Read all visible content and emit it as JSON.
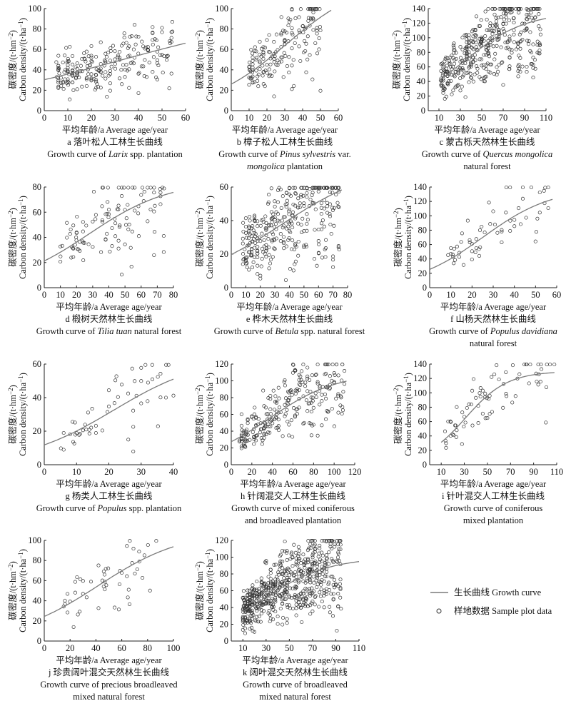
{
  "ylabel_cn": "碳密度/(t·hm",
  "ylabel_cn_sup": "−2",
  "ylabel_cn_end": ")",
  "ylabel_en": "Carbon density/(t·ha",
  "ylabel_en_sup": "−1",
  "ylabel_en_end": ")",
  "xlabel": "平均年龄/a Average age/year",
  "legend": {
    "curve_label": "生长曲线 Growth curve",
    "points_label": "样地数据 Sample plot data"
  },
  "colors": {
    "curve": "#7a7a7a",
    "points": "#333333",
    "axis": "#222222"
  },
  "chart_data": [
    {
      "id": "a",
      "type": "scatter",
      "caption_cn": "a 落叶松人工林生长曲线",
      "caption_en_pre": "Growth curve of ",
      "caption_en_ital": "Larix",
      "caption_en_post": " spp. plantation",
      "xlim": [
        0,
        60
      ],
      "xticks": [
        0,
        10,
        20,
        30,
        40,
        50,
        60
      ],
      "ylim": [
        0,
        100
      ],
      "yticks": [
        0,
        20,
        40,
        60,
        80,
        100
      ],
      "curve": {
        "x0": 0,
        "x1": 60,
        "a": 100,
        "b": 2.3,
        "c": 0.025
      },
      "points": {
        "n": 230,
        "xmin": 5,
        "xmax": 55,
        "spread": 0.28,
        "seed": 11
      }
    },
    {
      "id": "b",
      "type": "scatter",
      "caption_cn": "b 樟子松人工林生长曲线",
      "caption_en_pre": "Growth curve of ",
      "caption_en_ital": "Pinus sylvestris",
      "caption_en_post": " var.",
      "caption_en2_pre": "",
      "caption_en2_ital": "mongolica",
      "caption_en2_post": " plantation",
      "xlim": [
        0,
        60
      ],
      "xticks": [
        0,
        10,
        20,
        30,
        40,
        50,
        60
      ],
      "ylim": [
        0,
        100
      ],
      "yticks": [
        0,
        20,
        40,
        60,
        80,
        100
      ],
      "curve": {
        "x0": 0,
        "x1": 56,
        "a": 130,
        "b": 4.0,
        "c": 0.045
      },
      "points": {
        "n": 170,
        "xmin": 10,
        "xmax": 50,
        "spread": 0.3,
        "seed": 23
      }
    },
    {
      "id": "c",
      "type": "scatter",
      "caption_cn": "c 蒙古栎天然林生长曲线",
      "caption_en_pre": "Growth curve of ",
      "caption_en_ital": "Quercus mongolica",
      "caption_en_post": "",
      "caption_en2_pre": "natural forest",
      "caption_en2_ital": "",
      "caption_en2_post": "",
      "xlim": [
        0,
        110
      ],
      "xticks": [
        10,
        30,
        50,
        70,
        90,
        110
      ],
      "ylim": [
        0,
        140
      ],
      "yticks": [
        0,
        20,
        40,
        60,
        80,
        100,
        120,
        140
      ],
      "curve": {
        "x0": 10,
        "x1": 110,
        "a": 135,
        "b": 3.2,
        "c": 0.035
      },
      "points": {
        "n": 420,
        "xmin": 12,
        "xmax": 105,
        "spread": 0.28,
        "seed": 37
      }
    },
    {
      "id": "d",
      "type": "scatter",
      "caption_cn": "d 椴树天然林生长曲线",
      "caption_en_pre": "Growth curve of ",
      "caption_en_ital": "Tilia tuan",
      "caption_en_post": " natural forest",
      "xlim": [
        0,
        80
      ],
      "xticks": [
        0,
        10,
        20,
        30,
        40,
        50,
        60,
        70,
        80
      ],
      "ylim": [
        0,
        80
      ],
      "yticks": [
        0,
        20,
        40,
        60,
        80
      ],
      "curve": {
        "x0": 0,
        "x1": 80,
        "a": 85,
        "b": 3.0,
        "c": 0.04
      },
      "points": {
        "n": 110,
        "xmin": 10,
        "xmax": 75,
        "spread": 0.3,
        "seed": 41
      }
    },
    {
      "id": "e",
      "type": "scatter",
      "caption_cn": "e 桦木天然林生长曲线",
      "caption_en_pre": "Growth curve of ",
      "caption_en_ital": "Betula",
      "caption_en_post": " spp. natural forest",
      "xlim": [
        0,
        80
      ],
      "xticks": [
        0,
        10,
        20,
        30,
        40,
        50,
        60,
        70,
        80
      ],
      "ylim": [
        0,
        60
      ],
      "yticks": [
        0,
        20,
        40,
        60
      ],
      "curve": {
        "x0": 0,
        "x1": 76,
        "a": 75,
        "b": 2.8,
        "c": 0.03
      },
      "points": {
        "n": 330,
        "xmin": 8,
        "xmax": 75,
        "spread": 0.35,
        "seed": 53
      }
    },
    {
      "id": "f",
      "type": "scatter",
      "caption_cn": "f 山杨天然林生长曲线",
      "caption_en_pre": "Growth curve of ",
      "caption_en_ital": "Populus davidiana",
      "caption_en_post": "",
      "caption_en2_pre": "natural forest",
      "caption_en2_ital": "",
      "caption_en2_post": "",
      "xlim": [
        0,
        60
      ],
      "xticks": [
        0,
        10,
        20,
        30,
        40,
        50,
        60
      ],
      "ylim": [
        0,
        140
      ],
      "yticks": [
        0,
        20,
        40,
        60,
        80,
        100,
        120,
        140
      ],
      "curve": {
        "x0": 0,
        "x1": 58,
        "a": 140,
        "b": 4.5,
        "c": 0.06
      },
      "points": {
        "n": 60,
        "xmin": 8,
        "xmax": 56,
        "spread": 0.28,
        "seed": 67
      }
    },
    {
      "id": "g",
      "type": "scatter",
      "caption_cn": "g 杨类人工林生长曲线",
      "caption_en_pre": "Growth curve of ",
      "caption_en_ital": "Populus",
      "caption_en_post": " spp. plantation",
      "xlim": [
        0,
        40
      ],
      "xticks": [
        0,
        10,
        20,
        30,
        40
      ],
      "ylim": [
        0,
        60
      ],
      "yticks": [
        0,
        20,
        40,
        60
      ],
      "curve": {
        "x0": 0,
        "x1": 40,
        "a": 65,
        "b": 4.5,
        "c": 0.07
      },
      "points": {
        "n": 55,
        "xmin": 5,
        "xmax": 40,
        "spread": 0.35,
        "seed": 71
      }
    },
    {
      "id": "h",
      "type": "scatter",
      "caption_cn": "h 针阔混交人工林生长曲线",
      "caption_en_pre": "Growth curve of mixed coniferous",
      "caption_en_ital": "",
      "caption_en_post": "",
      "caption_en2_pre": "and broadleaved plantation",
      "caption_en2_ital": "",
      "caption_en2_post": "",
      "xlim": [
        0,
        120
      ],
      "xticks": [
        0,
        20,
        40,
        60,
        80,
        100,
        120
      ],
      "ylim": [
        0,
        120
      ],
      "yticks": [
        0,
        20,
        40,
        60,
        80,
        100,
        120
      ],
      "curve": {
        "x0": 0,
        "x1": 112,
        "a": 110,
        "b": 3.0,
        "c": 0.03
      },
      "points": {
        "n": 260,
        "xmin": 8,
        "xmax": 110,
        "spread": 0.3,
        "seed": 83
      }
    },
    {
      "id": "i",
      "type": "scatter",
      "caption_cn": "i 针叶混交人工林生长曲线",
      "caption_en_pre": "Growth curve of coniferous",
      "caption_en_ital": "",
      "caption_en_post": "",
      "caption_en2_pre": "mixed plantation",
      "caption_en2_ital": "",
      "caption_en2_post": "",
      "xlim": [
        0,
        110
      ],
      "xticks": [
        10,
        30,
        50,
        70,
        90,
        110
      ],
      "ylim": [
        0,
        140
      ],
      "yticks": [
        0,
        20,
        40,
        60,
        80,
        100,
        120,
        140
      ],
      "curve": {
        "x0": 10,
        "x1": 108,
        "a": 130,
        "b": 5.5,
        "c": 0.055
      },
      "points": {
        "n": 75,
        "xmin": 10,
        "xmax": 108,
        "spread": 0.25,
        "seed": 97
      }
    },
    {
      "id": "j",
      "type": "scatter",
      "caption_cn": "j 珍贵阔叶混交天然林生长曲线",
      "caption_en_pre": "Growth curve of precious broadleaved",
      "caption_en_ital": "",
      "caption_en_post": "",
      "caption_en2_pre": "mixed natural forest",
      "caption_en2_ital": "",
      "caption_en2_post": "",
      "xlim": [
        0,
        100
      ],
      "xticks": [
        0,
        20,
        40,
        60,
        80,
        100
      ],
      "ylim": [
        0,
        100
      ],
      "yticks": [
        0,
        20,
        40,
        60,
        80,
        100
      ],
      "curve": {
        "x0": 0,
        "x1": 100,
        "a": 110,
        "b": 3.5,
        "c": 0.03
      },
      "points": {
        "n": 50,
        "xmin": 15,
        "xmax": 90,
        "spread": 0.28,
        "seed": 103
      }
    },
    {
      "id": "k",
      "type": "scatter",
      "caption_cn": "k 阔叶混交天然林生长曲线",
      "caption_en_pre": "Growth curve of broadleaved",
      "caption_en_ital": "",
      "caption_en_post": "",
      "caption_en2_pre": "mixed natural forest",
      "caption_en2_ital": "",
      "caption_en2_post": "",
      "xlim": [
        0,
        110
      ],
      "xticks": [
        10,
        30,
        50,
        70,
        90,
        110
      ],
      "ylim": [
        0,
        120
      ],
      "yticks": [
        0,
        20,
        40,
        60,
        80,
        100,
        120
      ],
      "curve": {
        "x0": 10,
        "x1": 110,
        "a": 100,
        "b": 2.6,
        "c": 0.035
      },
      "points": {
        "n": 620,
        "xmin": 10,
        "xmax": 95,
        "spread": 0.3,
        "seed": 127
      }
    }
  ]
}
